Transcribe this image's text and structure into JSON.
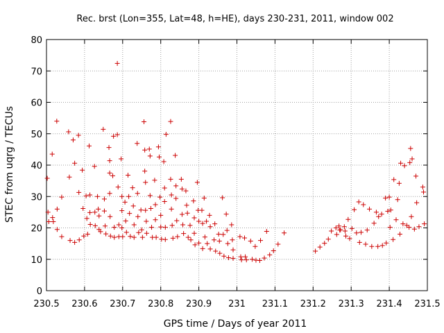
{
  "chart_data": {
    "type": "scatter",
    "title": "Rec. brst (Lon=355, Lat=48, h=HE), days 230-231, 2011, window 002",
    "xlabel": "GPS time / Days of year 2011",
    "ylabel": "STEC from uqrg / TECUs",
    "xlim": [
      230.5,
      231.5
    ],
    "ylim": [
      0,
      80
    ],
    "xticks": [
      230.5,
      230.6,
      230.7,
      230.8,
      230.9,
      231,
      231.1,
      231.2,
      231.3,
      231.4,
      231.5
    ],
    "xtick_labels": [
      "230.5",
      "230.6",
      "230.7",
      "230.8",
      "230.9",
      "231",
      "231.1",
      "231.2",
      "231.3",
      "231.4",
      "231.5"
    ],
    "yticks": [
      0,
      10,
      20,
      30,
      40,
      50,
      60,
      70,
      80
    ],
    "ytick_labels": [
      "0",
      "10",
      "20",
      "30",
      "40",
      "50",
      "60",
      "70",
      "80"
    ],
    "grid": true,
    "marker": "+",
    "series": [
      {
        "name": "STEC",
        "color": "#cc0000",
        "points": [
          [
            230.502,
            35.8
          ],
          [
            230.504,
            25.0
          ],
          [
            230.506,
            22.0
          ],
          [
            230.515,
            43.5
          ],
          [
            230.516,
            23.3
          ],
          [
            230.518,
            22.0
          ],
          [
            230.527,
            54.0
          ],
          [
            230.528,
            26.0
          ],
          [
            230.528,
            19.5
          ],
          [
            230.54,
            29.8
          ],
          [
            230.54,
            17.2
          ],
          [
            230.558,
            50.6
          ],
          [
            230.56,
            36.2
          ],
          [
            230.562,
            16.0
          ],
          [
            230.57,
            48.0
          ],
          [
            230.574,
            40.6
          ],
          [
            230.574,
            15.4
          ],
          [
            230.584,
            49.5
          ],
          [
            230.585,
            31.3
          ],
          [
            230.586,
            16.2
          ],
          [
            230.594,
            38.4
          ],
          [
            230.596,
            26.2
          ],
          [
            230.598,
            17.4
          ],
          [
            230.604,
            30.2
          ],
          [
            230.606,
            23.0
          ],
          [
            230.608,
            18.0
          ],
          [
            230.612,
            46.1
          ],
          [
            230.614,
            30.5
          ],
          [
            230.614,
            24.9
          ],
          [
            230.615,
            21.1
          ],
          [
            230.626,
            39.6
          ],
          [
            230.627,
            25.0
          ],
          [
            230.628,
            20.7
          ],
          [
            230.634,
            30.0
          ],
          [
            230.636,
            26.0
          ],
          [
            230.638,
            23.8
          ],
          [
            230.638,
            19.5
          ],
          [
            230.642,
            18.8
          ],
          [
            230.649,
            51.4
          ],
          [
            230.652,
            29.2
          ],
          [
            230.652,
            25.4
          ],
          [
            230.654,
            20.6
          ],
          [
            230.656,
            18.1
          ],
          [
            230.664,
            45.6
          ],
          [
            230.666,
            41.4
          ],
          [
            230.666,
            37.5
          ],
          [
            230.666,
            31.0
          ],
          [
            230.667,
            23.6
          ],
          [
            230.668,
            17.4
          ],
          [
            230.674,
            36.6
          ],
          [
            230.676,
            49.2
          ],
          [
            230.678,
            20.2
          ],
          [
            230.678,
            17.0
          ],
          [
            230.686,
            72.4
          ],
          [
            230.686,
            49.7
          ],
          [
            230.688,
            33.0
          ],
          [
            230.69,
            21.0
          ],
          [
            230.69,
            17.2
          ],
          [
            230.696,
            42.0
          ],
          [
            230.698,
            30.0
          ],
          [
            230.698,
            25.5
          ],
          [
            230.698,
            20.0
          ],
          [
            230.7,
            17.2
          ],
          [
            230.706,
            28.2
          ],
          [
            230.708,
            22.2
          ],
          [
            230.71,
            18.6
          ],
          [
            230.714,
            36.8
          ],
          [
            230.716,
            30.0
          ],
          [
            230.718,
            24.6
          ],
          [
            230.72,
            17.3
          ],
          [
            230.726,
            32.8
          ],
          [
            230.728,
            27.0
          ],
          [
            230.73,
            21.0
          ],
          [
            230.73,
            17.0
          ],
          [
            230.738,
            46.9
          ],
          [
            230.739,
            31.0
          ],
          [
            230.74,
            23.6
          ],
          [
            230.742,
            18.5
          ],
          [
            230.748,
            25.7
          ],
          [
            230.75,
            19.4
          ],
          [
            230.752,
            17.0
          ],
          [
            230.756,
            53.8
          ],
          [
            230.758,
            44.8
          ],
          [
            230.758,
            38.1
          ],
          [
            230.76,
            34.5
          ],
          [
            230.76,
            25.6
          ],
          [
            230.762,
            22.1
          ],
          [
            230.763,
            18.3
          ],
          [
            230.77,
            45.1
          ],
          [
            230.772,
            42.9
          ],
          [
            230.772,
            30.3
          ],
          [
            230.774,
            26.2
          ],
          [
            230.776,
            20.2
          ],
          [
            230.778,
            17.0
          ],
          [
            230.784,
            35.2
          ],
          [
            230.786,
            27.4
          ],
          [
            230.786,
            22.6
          ],
          [
            230.788,
            17.0
          ],
          [
            230.794,
            45.8
          ],
          [
            230.796,
            42.6
          ],
          [
            230.798,
            29.8
          ],
          [
            230.8,
            24.0
          ],
          [
            230.8,
            20.3
          ],
          [
            230.802,
            16.4
          ],
          [
            230.808,
            41.1
          ],
          [
            230.81,
            32.7
          ],
          [
            230.81,
            28.4
          ],
          [
            230.812,
            20.2
          ],
          [
            230.812,
            16.3
          ],
          [
            230.814,
            49.8
          ],
          [
            230.826,
            53.9
          ],
          [
            230.826,
            35.5
          ],
          [
            230.828,
            30.5
          ],
          [
            230.828,
            26.0
          ],
          [
            230.83,
            20.8
          ],
          [
            230.832,
            16.7
          ],
          [
            230.838,
            43.1
          ],
          [
            230.84,
            33.4
          ],
          [
            230.84,
            29.4
          ],
          [
            230.842,
            22.3
          ],
          [
            230.844,
            17.2
          ],
          [
            230.854,
            35.5
          ],
          [
            230.856,
            32.4
          ],
          [
            230.856,
            24.3
          ],
          [
            230.858,
            21.0
          ],
          [
            230.86,
            18.2
          ],
          [
            230.866,
            31.8
          ],
          [
            230.868,
            27.2
          ],
          [
            230.87,
            24.7
          ],
          [
            230.872,
            17.0
          ],
          [
            230.877,
            20.8
          ],
          [
            230.879,
            16.2
          ],
          [
            230.886,
            28.6
          ],
          [
            230.888,
            23.2
          ],
          [
            230.888,
            18.3
          ],
          [
            230.89,
            14.6
          ],
          [
            230.896,
            34.5
          ],
          [
            230.898,
            25.6
          ],
          [
            230.9,
            22.1
          ],
          [
            230.9,
            15.2
          ],
          [
            230.908,
            25.6
          ],
          [
            230.91,
            21.4
          ],
          [
            230.91,
            13.4
          ],
          [
            230.914,
            29.5
          ],
          [
            230.916,
            17.1
          ],
          [
            230.92,
            22.1
          ],
          [
            230.922,
            15.0
          ],
          [
            230.928,
            24.0
          ],
          [
            230.93,
            20.4
          ],
          [
            230.93,
            13.3
          ],
          [
            230.94,
            16.2
          ],
          [
            230.942,
            21.3
          ],
          [
            230.944,
            12.6
          ],
          [
            230.952,
            18.0
          ],
          [
            230.954,
            15.8
          ],
          [
            230.955,
            11.9
          ],
          [
            230.962,
            29.6
          ],
          [
            230.964,
            17.9
          ],
          [
            230.966,
            11.0
          ],
          [
            230.972,
            24.4
          ],
          [
            230.974,
            19.2
          ],
          [
            230.976,
            15.0
          ],
          [
            230.978,
            10.5
          ],
          [
            230.986,
            21.0
          ],
          [
            230.988,
            16.2
          ],
          [
            230.99,
            13.0
          ],
          [
            230.99,
            10.3
          ],
          [
            231.008,
            17.2
          ],
          [
            231.01,
            10.8
          ],
          [
            231.012,
            9.8
          ],
          [
            231.02,
            16.8
          ],
          [
            231.022,
            10.8
          ],
          [
            231.025,
            9.8
          ],
          [
            231.036,
            15.8
          ],
          [
            231.04,
            10.0
          ],
          [
            231.048,
            14.1
          ],
          [
            231.05,
            9.7
          ],
          [
            231.06,
            9.6
          ],
          [
            231.062,
            16.0
          ],
          [
            231.072,
            10.4
          ],
          [
            231.078,
            18.9
          ],
          [
            231.086,
            11.4
          ],
          [
            231.096,
            12.7
          ],
          [
            231.108,
            14.8
          ],
          [
            231.124,
            18.4
          ],
          [
            231.206,
            12.6
          ],
          [
            231.218,
            13.9
          ],
          [
            231.23,
            15.1
          ],
          [
            231.24,
            16.4
          ],
          [
            231.248,
            19.0
          ],
          [
            231.26,
            20.0
          ],
          [
            231.262,
            17.9
          ],
          [
            231.268,
            20.6
          ],
          [
            231.27,
            19.3
          ],
          [
            231.272,
            19.4
          ],
          [
            231.282,
            20.4
          ],
          [
            231.284,
            19.0
          ],
          [
            231.286,
            17.4
          ],
          [
            231.292,
            22.7
          ],
          [
            231.296,
            16.6
          ],
          [
            231.302,
            19.8
          ],
          [
            231.308,
            25.8
          ],
          [
            231.314,
            18.4
          ],
          [
            231.32,
            28.3
          ],
          [
            231.322,
            15.4
          ],
          [
            231.326,
            18.6
          ],
          [
            231.332,
            27.4
          ],
          [
            231.338,
            14.8
          ],
          [
            231.342,
            19.3
          ],
          [
            231.348,
            26.0
          ],
          [
            231.354,
            14.1
          ],
          [
            231.36,
            21.5
          ],
          [
            231.366,
            25.0
          ],
          [
            231.37,
            14.1
          ],
          [
            231.372,
            23.6
          ],
          [
            231.38,
            24.4
          ],
          [
            231.382,
            14.4
          ],
          [
            231.39,
            29.5
          ],
          [
            231.392,
            15.2
          ],
          [
            231.396,
            25.3
          ],
          [
            231.4,
            29.8
          ],
          [
            231.402,
            20.2
          ],
          [
            231.404,
            25.7
          ],
          [
            231.41,
            16.3
          ],
          [
            231.412,
            35.4
          ],
          [
            231.418,
            22.6
          ],
          [
            231.422,
            29.0
          ],
          [
            231.426,
            34.2
          ],
          [
            231.428,
            18.0
          ],
          [
            231.43,
            40.6
          ],
          [
            231.436,
            21.3
          ],
          [
            231.44,
            39.8
          ],
          [
            231.446,
            20.8
          ],
          [
            231.452,
            20.2
          ],
          [
            231.454,
            40.8
          ],
          [
            231.456,
            45.3
          ],
          [
            231.458,
            23.6
          ],
          [
            231.46,
            42.0
          ],
          [
            231.466,
            19.6
          ],
          [
            231.47,
            36.5
          ],
          [
            231.472,
            28.0
          ],
          [
            231.478,
            20.4
          ],
          [
            231.488,
            33.0
          ],
          [
            231.49,
            31.4
          ],
          [
            231.492,
            21.3
          ]
        ]
      }
    ]
  }
}
